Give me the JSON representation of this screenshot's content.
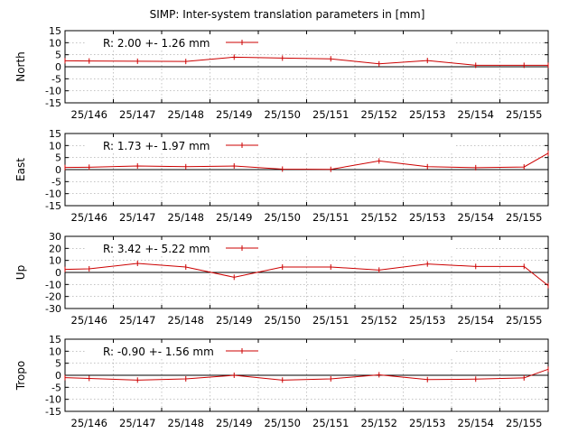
{
  "figure": {
    "title": "SIMP: Inter-system translation parameters in [mm]"
  },
  "colors": {
    "series": "#cc0000",
    "axis": "#000000",
    "grid": "#a0a0a0",
    "background": "#ffffff"
  },
  "chart_data": [
    {
      "type": "line",
      "ylabel": "North",
      "ylim": [
        -15,
        15
      ],
      "yticks": [
        15,
        10,
        5,
        0,
        -5,
        -10,
        -15
      ],
      "xlim": [
        0,
        10
      ],
      "xtick_labels": [
        "25/146",
        "25/147",
        "25/148",
        "25/149",
        "25/150",
        "25/151",
        "25/152",
        "25/153",
        "25/154",
        "25/155"
      ],
      "grid": true,
      "legend_position": "top-left",
      "series": [
        {
          "name": "R:   2.00 +- 1.26 mm",
          "x": [
            0,
            0.5,
            1.5,
            2.5,
            3.5,
            4.5,
            5.5,
            6.5,
            7.5,
            8.5,
            9.5,
            10
          ],
          "y": [
            2.5,
            2.4,
            2.3,
            2.2,
            4.0,
            3.6,
            3.3,
            1.2,
            2.6,
            0.6,
            0.6,
            0.6
          ]
        }
      ]
    },
    {
      "type": "line",
      "ylabel": "East",
      "ylim": [
        -15,
        15
      ],
      "yticks": [
        15,
        10,
        5,
        0,
        -5,
        -10,
        -15
      ],
      "xlim": [
        0,
        10
      ],
      "xtick_labels": [
        "25/146",
        "25/147",
        "25/148",
        "25/149",
        "25/150",
        "25/151",
        "25/152",
        "25/153",
        "25/154",
        "25/155"
      ],
      "grid": true,
      "legend_position": "top-left",
      "series": [
        {
          "name": "R:   1.73 +- 1.97 mm",
          "x": [
            0,
            0.5,
            1.5,
            2.5,
            3.5,
            4.5,
            5.5,
            6.5,
            7.5,
            8.5,
            9.5,
            10
          ],
          "y": [
            0.9,
            1.0,
            1.5,
            1.2,
            1.5,
            0.2,
            0.1,
            3.6,
            1.2,
            0.8,
            1.1,
            6.8
          ]
        }
      ]
    },
    {
      "type": "line",
      "ylabel": "Up",
      "ylim": [
        -30,
        30
      ],
      "yticks": [
        30,
        20,
        10,
        0,
        -10,
        -20,
        -30
      ],
      "xlim": [
        0,
        10
      ],
      "xtick_labels": [
        "25/146",
        "25/147",
        "25/148",
        "25/149",
        "25/150",
        "25/151",
        "25/152",
        "25/153",
        "25/154",
        "25/155"
      ],
      "grid": true,
      "legend_position": "top-left",
      "series": [
        {
          "name": "R:   3.42 +- 5.22 mm",
          "x": [
            0,
            0.5,
            1.5,
            2.5,
            3.5,
            4.5,
            5.5,
            6.5,
            7.5,
            8.5,
            9.5,
            10
          ],
          "y": [
            2.5,
            3.0,
            7.5,
            4.5,
            -4.0,
            4.5,
            4.5,
            2.0,
            7.0,
            5.0,
            5.0,
            -11.0
          ]
        }
      ]
    },
    {
      "type": "line",
      "ylabel": "Tropo",
      "ylim": [
        -15,
        15
      ],
      "yticks": [
        15,
        10,
        5,
        0,
        -5,
        -10,
        -15
      ],
      "xlim": [
        0,
        10
      ],
      "xtick_labels": [
        "25/146",
        "25/147",
        "25/148",
        "25/149",
        "25/150",
        "25/151",
        "25/152",
        "25/153",
        "25/154",
        "25/155"
      ],
      "grid": true,
      "legend_position": "top-left",
      "series": [
        {
          "name": "R:  -0.90 +- 1.56 mm",
          "x": [
            0,
            0.5,
            1.5,
            2.5,
            3.5,
            4.5,
            5.5,
            6.5,
            7.5,
            8.5,
            9.5,
            10
          ],
          "y": [
            -1.0,
            -1.3,
            -2.0,
            -1.5,
            0.0,
            -2.0,
            -1.5,
            0.2,
            -1.8,
            -1.6,
            -1.1,
            2.5
          ]
        }
      ]
    }
  ]
}
